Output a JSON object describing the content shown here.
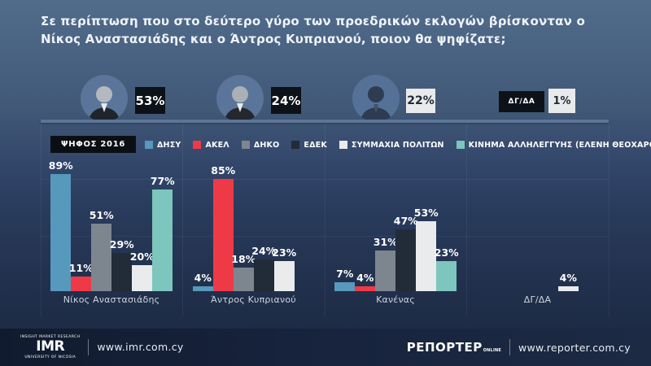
{
  "page": {
    "title_line1": "Σε περίπτωση που στο δεύτερο γύρο των προεδρικών εκλογών βρίσκονταν ο",
    "title_line2": "Νίκος Αναστασιάδης και ο Άντρος Κυπριανού, ποιον θα ψηφίζατε;"
  },
  "summary": {
    "items": [
      {
        "name": "Νίκος Αναστασιάδης",
        "value": "53%"
      },
      {
        "name": "Άντρος Κυπριανού",
        "value": "24%"
      },
      {
        "name": "Κανένας",
        "value": "22%"
      },
      {
        "name": "ΔΓ/ΔΑ",
        "value": "1%"
      }
    ]
  },
  "legend_badge": "ΨΗΦΟΣ 2016",
  "chart_data": {
    "type": "bar",
    "title": "Σε περίπτωση που στο δεύτερο γύρο των προεδρικών εκλογών βρίσκονταν ο Νίκος Αναστασιάδης και ο Άντρος Κυπριανού, ποιον θα ψηφίζατε;",
    "unit": "%",
    "ylim": [
      0,
      100
    ],
    "grid": "subtle",
    "legend_position": "top",
    "legend_title": "ΨΗΦΟΣ 2016",
    "categories": [
      "Νίκος Αναστασιάδης",
      "Άντρος Κυπριανού",
      "Κανένας",
      "ΔΓ/ΔΑ"
    ],
    "series": [
      {
        "name": "ΔΗΣΥ",
        "color": "#5798bd",
        "values": [
          89,
          4,
          7,
          null
        ]
      },
      {
        "name": "ΑΚΕΛ",
        "color": "#ee3a47",
        "values": [
          11,
          85,
          4,
          null
        ]
      },
      {
        "name": "ΔΗΚΟ",
        "color": "#7d868f",
        "values": [
          51,
          18,
          31,
          null
        ]
      },
      {
        "name": "ΕΔΕΚ",
        "color": "#222c38",
        "values": [
          29,
          24,
          47,
          null
        ]
      },
      {
        "name": "ΣΥΜΜΑΧΙΑ ΠΟΛΙΤΩΝ",
        "color": "#e9ebed",
        "values": [
          20,
          23,
          53,
          4
        ]
      },
      {
        "name": "ΚΙΝΗΜΑ ΑΛΛΗΛΕΓΓΥΗΣ (ΕΛΕΝΗ ΘΕΟΧΑΡΟΥΣ)",
        "color": "#7cc6bd",
        "values": [
          77,
          null,
          23,
          null
        ]
      }
    ],
    "overall_results": [
      {
        "option": "Νίκος Αναστασιάδης",
        "value": 53
      },
      {
        "option": "Άντρος Κυπριανού",
        "value": 24
      },
      {
        "option": "Κανένας",
        "value": 22
      },
      {
        "option": "ΔΓ/ΔΑ",
        "value": 1
      }
    ]
  },
  "footer": {
    "imr_top": "INSIGHT MARKET RESEARCH",
    "imr_main": "IMR",
    "imr_bottom": "UNIVERSITY OF NICOSIA",
    "imr_url": "www.imr.com.cy",
    "reporter_main": "ΡΕΠΟΡΤΕΡ",
    "reporter_sub": "ONLINE",
    "reporter_url": "www.reporter.com.cy"
  }
}
